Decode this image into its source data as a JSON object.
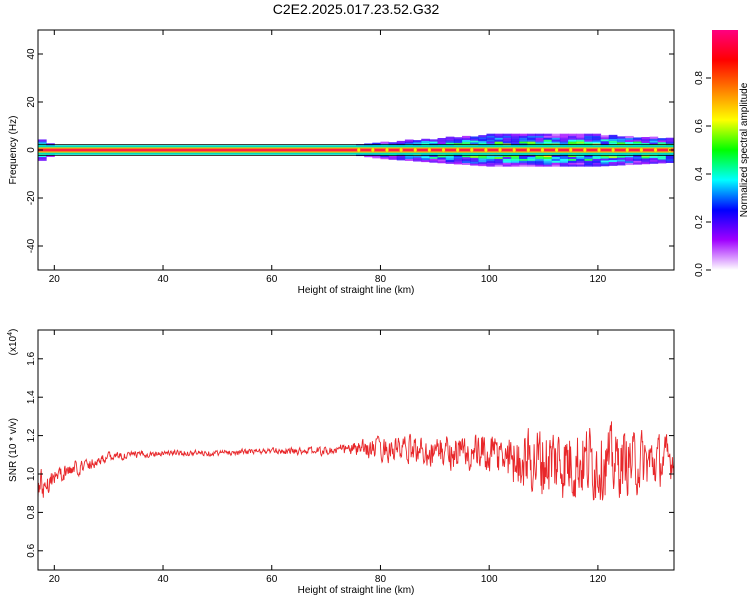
{
  "title": "C2E2.2025.017.23.52.G32",
  "chart_data": [
    {
      "type": "heatmap",
      "name": "spectrogram",
      "xlabel": "Height of straight line (km)",
      "ylabel": "Frequency (Hz)",
      "xlim": [
        17,
        134
      ],
      "ylim": [
        -50,
        50
      ],
      "xticks": [
        20,
        40,
        60,
        80,
        100,
        120
      ],
      "yticks": [
        -40,
        -20,
        0,
        20,
        40
      ],
      "colorbar": {
        "label": "Normalized spectral amplitude",
        "range": [
          0,
          1
        ],
        "ticks": [
          0.0,
          0.2,
          0.4,
          0.6,
          0.8
        ],
        "colors": [
          "#ffffff",
          "#a000ff",
          "#0000ff",
          "#00ffff",
          "#00ff00",
          "#ffff00",
          "#ff8000",
          "#ff0000",
          "#ff0080"
        ]
      },
      "main_band": {
        "center_hz": 0,
        "halfwidth_hz": 2
      },
      "spread_profile": [
        {
          "x": 17,
          "spread_hz": 3
        },
        {
          "x": 20,
          "spread_hz": 1
        },
        {
          "x": 75,
          "spread_hz": 1
        },
        {
          "x": 80,
          "spread_hz": 2
        },
        {
          "x": 90,
          "spread_hz": 3
        },
        {
          "x": 100,
          "spread_hz": 4
        },
        {
          "x": 110,
          "spread_hz": 4
        },
        {
          "x": 120,
          "spread_hz": 4
        },
        {
          "x": 134,
          "spread_hz": 3
        }
      ]
    },
    {
      "type": "line",
      "name": "snr",
      "xlabel": "Height of straight line (km)",
      "ylabel": "SNR (10 * v/v)",
      "y_multiplier": "(x10",
      "y_multiplier_exp": "4",
      "y_multiplier_close": ")",
      "xlim": [
        17,
        134
      ],
      "ylim": [
        0.5,
        1.75
      ],
      "xticks": [
        20,
        40,
        60,
        80,
        100,
        120
      ],
      "yticks": [
        0.6,
        0.8,
        1.0,
        1.2,
        1.4,
        1.6
      ],
      "line_color": "#e8272a",
      "envelope": [
        {
          "x": 17,
          "mean": 0.93,
          "amp": 0.14
        },
        {
          "x": 20,
          "mean": 0.99,
          "amp": 0.06
        },
        {
          "x": 25,
          "mean": 1.04,
          "amp": 0.05
        },
        {
          "x": 30,
          "mean": 1.09,
          "amp": 0.03
        },
        {
          "x": 40,
          "mean": 1.11,
          "amp": 0.02
        },
        {
          "x": 50,
          "mean": 1.11,
          "amp": 0.02
        },
        {
          "x": 60,
          "mean": 1.12,
          "amp": 0.02
        },
        {
          "x": 70,
          "mean": 1.12,
          "amp": 0.03
        },
        {
          "x": 75,
          "mean": 1.13,
          "amp": 0.05
        },
        {
          "x": 80,
          "mean": 1.13,
          "amp": 0.08
        },
        {
          "x": 90,
          "mean": 1.12,
          "amp": 0.11
        },
        {
          "x": 100,
          "mean": 1.1,
          "amp": 0.15
        },
        {
          "x": 105,
          "mean": 1.08,
          "amp": 0.19
        },
        {
          "x": 110,
          "mean": 1.07,
          "amp": 0.27
        },
        {
          "x": 120,
          "mean": 1.06,
          "amp": 0.26
        },
        {
          "x": 130,
          "mean": 1.06,
          "amp": 0.2
        },
        {
          "x": 134,
          "mean": 1.08,
          "amp": 0.14
        }
      ]
    }
  ]
}
